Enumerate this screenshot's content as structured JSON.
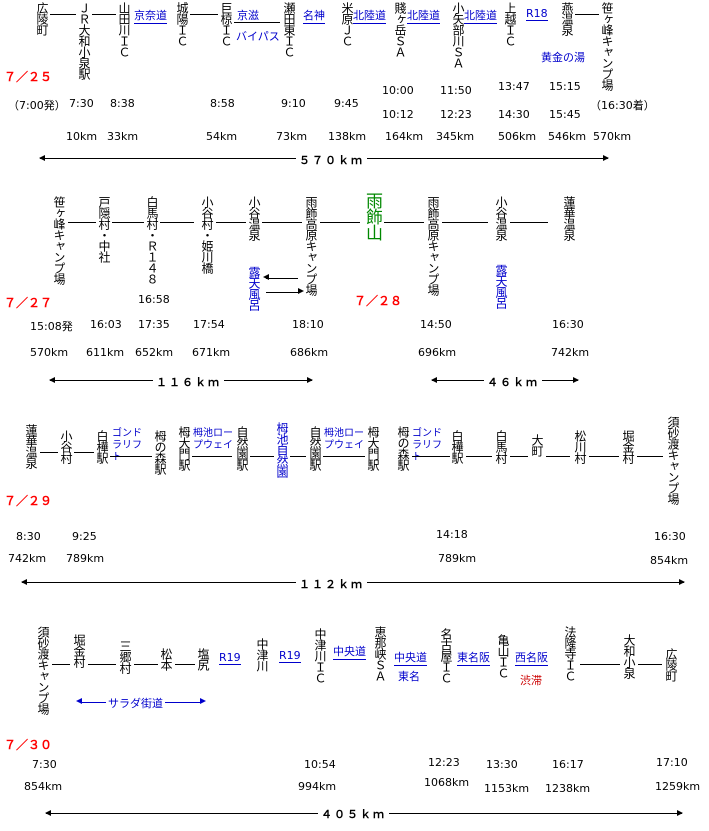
{
  "day1": {
    "date": "７／２５",
    "stations": [
      "広陵町",
      "ＪＲ大和小泉駅",
      "山田川ＩＣ",
      "城陽ＩＣ",
      "巨椋ＩＣ",
      "瀬田東ＩＣ",
      "米原ＪＣ",
      "賤ヶ岳ＳＡ",
      "小矢部川ＳＡ",
      "上越ＩＣ",
      "燕温泉",
      "笹ヶ峰キャンプ場"
    ],
    "roads": [
      "京奈道",
      "京滋",
      "バイパス",
      "名神",
      "北陸道",
      "北陸道",
      "北陸道",
      "R18"
    ],
    "note": "黄金の湯",
    "times": [
      "（7:00発）",
      "7:30",
      "8:38",
      "8:58",
      "9:10",
      "9:45",
      "10:00",
      "10:12",
      "11:50",
      "12:23",
      "13:47",
      "14:30",
      "15:15",
      "15:45",
      "（16:30着）"
    ],
    "kms": [
      "10km",
      "33km",
      "54km",
      "73km",
      "138km",
      "164km",
      "345km",
      "506km",
      "546km",
      "570km"
    ],
    "total": "５７０ｋｍ"
  },
  "day2": {
    "date": "７／２７",
    "date2": "７／２８",
    "stations": [
      "笹ヶ峰キャンプ場",
      "戸隠村・中社",
      "白馬村・Ｒ１４８",
      "小谷村・姫川橋",
      "小谷温泉",
      "雨飾高原キャンプ場",
      "雨飾山",
      "雨飾高原キャンプ場",
      "小谷温泉",
      "蓮華温泉"
    ],
    "notes": [
      "露天風呂",
      "露天風呂"
    ],
    "times": [
      "15:08発",
      "16:03",
      "16:58",
      "17:35",
      "17:54",
      "18:10",
      "14:50",
      "16:30"
    ],
    "kms": [
      "570km",
      "611km",
      "652km",
      "671km",
      "686km",
      "696km",
      "742km"
    ],
    "total1": "１１６ｋｍ",
    "total2": "４６ｋｍ"
  },
  "day3": {
    "date": "７／２９",
    "stations": [
      "蓮華温泉",
      "小谷村",
      "白樺駅",
      "栂の森駅",
      "栂大門駅",
      "自然園駅",
      "栂池自然園",
      "自然園駅",
      "栂大門駅",
      "栂の森駅",
      "白樺駅",
      "白馬村",
      "大町",
      "松川村",
      "堀金村",
      "須砂渡キャンプ場"
    ],
    "roads": [
      "ゴンドラリフト",
      "栂池ロープウェイ",
      "栂池ロープウェイ",
      "ゴンドラリフト"
    ],
    "times": [
      "8:30",
      "9:25",
      "14:18",
      "16:30"
    ],
    "kms": [
      "742km",
      "789km",
      "789km",
      "854km"
    ],
    "total": "１１２ｋｍ"
  },
  "day4": {
    "date": "７／３０",
    "stations": [
      "須砂渡キャンプ場",
      "堀金村",
      "三郷村",
      "松本",
      "塩尻",
      "中津川",
      "中津川ＩＣ",
      "恵那峡ＳＡ",
      "名古屋ＩＣ",
      "亀山ＩＣ",
      "法隆寺ＩＣ",
      "大和小泉",
      "広陵町"
    ],
    "roads": [
      "R19",
      "R19",
      "中央道",
      "中央道",
      "東名",
      "東名阪",
      "西名阪"
    ],
    "notes": [
      "サラダ街道",
      "渋滞"
    ],
    "times": [
      "7:30",
      "10:54",
      "12:23",
      "13:30",
      "16:17",
      "17:10"
    ],
    "kms": [
      "854km",
      "994km",
      "1068km",
      "1153km",
      "1238km",
      "1259km"
    ],
    "total": "４０５ｋｍ"
  }
}
